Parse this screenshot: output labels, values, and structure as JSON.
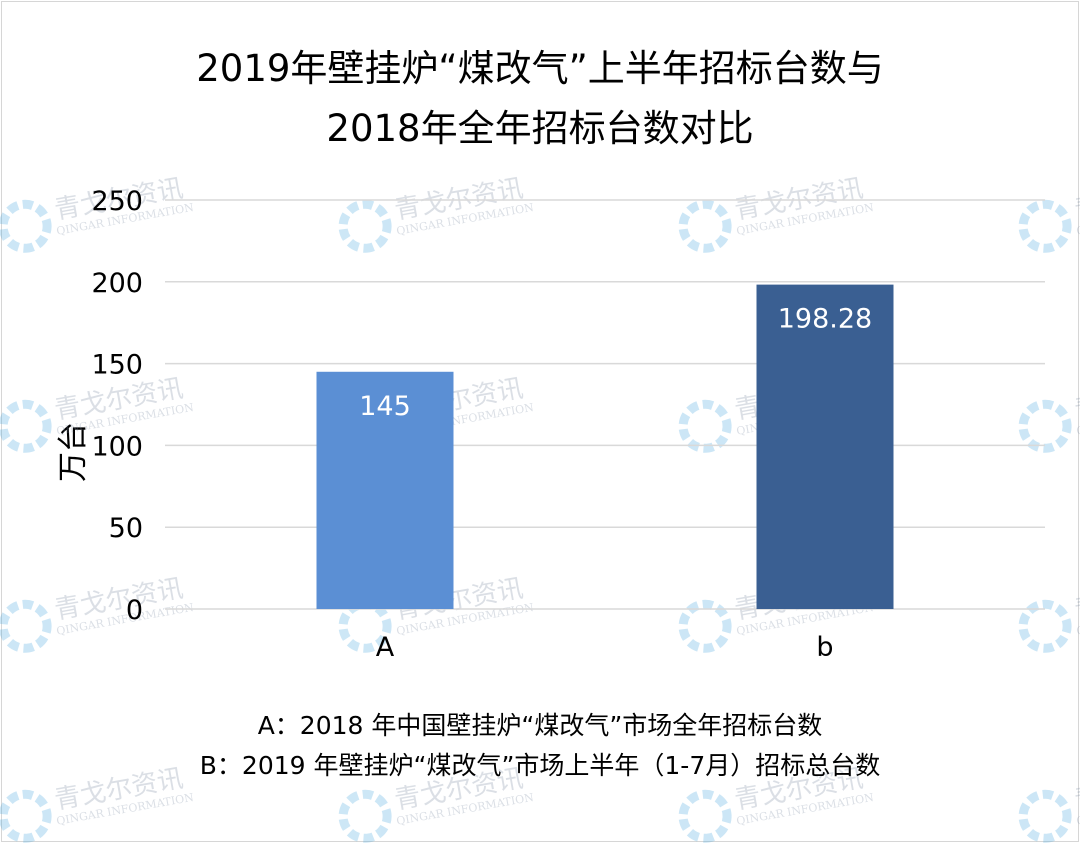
{
  "chart_data": {
    "type": "bar",
    "title_line1": "2019年壁挂炉“煤改气”上半年招标台数与",
    "title_line2": "2018年全年招标台数对比",
    "ylabel": "万台",
    "categories": [
      "A",
      "b"
    ],
    "values": [
      145,
      198.28
    ],
    "data_labels": [
      "145",
      "198.28"
    ],
    "yticks": [
      "0",
      "50",
      "100",
      "150",
      "200",
      "250"
    ],
    "ylim": [
      0,
      250
    ],
    "grid": true,
    "colors": [
      "#5b8fd4",
      "#3a5f92"
    ],
    "notes": [
      "A：2018 年中国壁挂炉“煤改气”市场全年招标台数",
      "B：2019 年壁挂炉“煤改气”市场上半年（1-7月）招标总台数"
    ]
  },
  "watermark": {
    "text_cn": "青戈尔资讯",
    "text_en": "QINGAR INFORMATION"
  }
}
